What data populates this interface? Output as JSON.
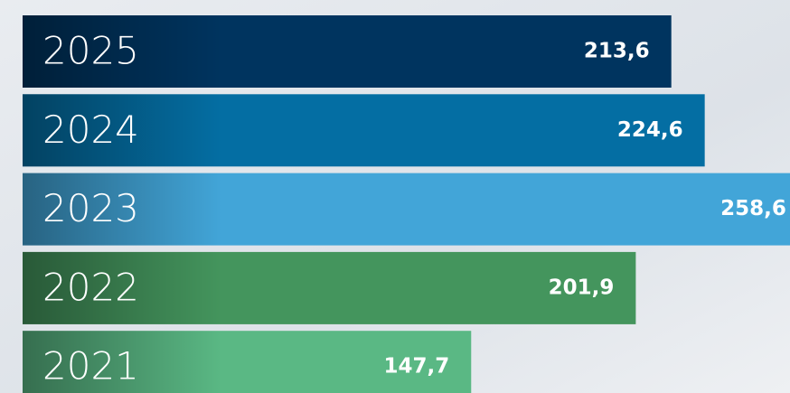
{
  "chart_data": {
    "type": "bar",
    "orientation": "horizontal",
    "categories": [
      "2025",
      "2024",
      "2023",
      "2022",
      "2021"
    ],
    "values": [
      213.6,
      224.6,
      258.6,
      201.9,
      147.7
    ],
    "value_labels": [
      "213,6",
      "224,6",
      "258,6",
      "201,9",
      "147,7"
    ],
    "colors": [
      "#00345f",
      "#046ea3",
      "#42a5d8",
      "#44955d",
      "#5ab884"
    ]
  }
}
